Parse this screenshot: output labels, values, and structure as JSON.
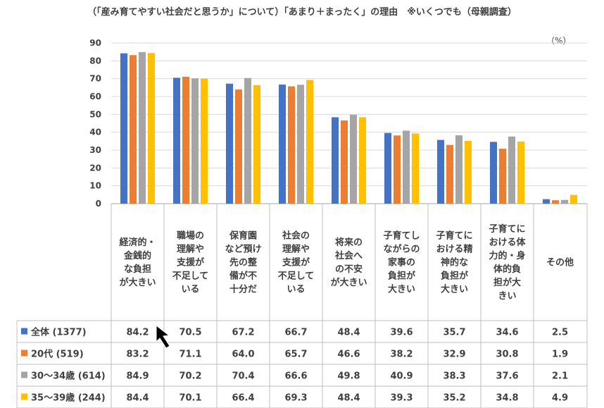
{
  "title": "（「産み育てやすい社会だと思うか」について）「あまり＋まったく」の理由　※いくつでも（母親調査）",
  "unit": "（%）",
  "colors": {
    "全体": "#4472C4",
    "20代": "#ED7D31",
    "30～34歳": "#A5A5A5",
    "35～39歳": "#FFC000",
    "grid": "#D9D9D9",
    "border": "#BFBFBF",
    "pointer": "#000000"
  },
  "chart_data": {
    "type": "bar",
    "ylim": [
      0,
      90
    ],
    "yticks": [
      0,
      10,
      20,
      30,
      40,
      50,
      60,
      70,
      80,
      90
    ],
    "categories": [
      [
        "経済的・",
        "金銭的",
        "な負担",
        "が大きい"
      ],
      [
        "職場の",
        "理解や",
        "支援が",
        "不足して",
        "いる"
      ],
      [
        "保育園",
        "など預け",
        "先の整",
        "備が不",
        "十分だ"
      ],
      [
        "社会の",
        "理解や",
        "支援が",
        "不足して",
        "いる"
      ],
      [
        "将来の",
        "社会へ",
        "の不安",
        "が大きい"
      ],
      [
        "子育てし",
        "ながらの",
        "家事の",
        "負担が",
        "大きい"
      ],
      [
        "子育てに",
        "おける精",
        "神的な",
        "負担が",
        "大きい"
      ],
      [
        "子育てに",
        "おける体",
        "力的・身",
        "体的負",
        "担が大",
        "きい"
      ],
      [
        "その他"
      ]
    ],
    "series": [
      {
        "name": "全体 (1377)",
        "key": "全体",
        "values": [
          84.2,
          70.5,
          67.2,
          66.7,
          48.4,
          39.6,
          35.7,
          34.6,
          2.5
        ]
      },
      {
        "name": "20代 (519)",
        "key": "20代",
        "values": [
          83.2,
          71.1,
          64.0,
          65.7,
          46.6,
          38.2,
          32.9,
          30.8,
          1.9
        ]
      },
      {
        "name": "30～34歳 (614)",
        "key": "30～34歳",
        "values": [
          84.9,
          70.2,
          70.4,
          66.6,
          49.8,
          40.9,
          38.3,
          37.6,
          2.1
        ]
      },
      {
        "name": "35～39歳 (244)",
        "key": "35～39歳",
        "values": [
          84.4,
          70.1,
          66.4,
          69.3,
          48.4,
          39.3,
          35.2,
          34.8,
          4.9
        ]
      }
    ]
  }
}
